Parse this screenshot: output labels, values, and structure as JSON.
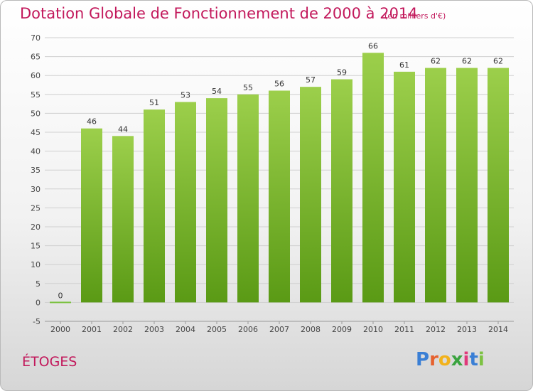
{
  "header": {
    "title": "Dotation Globale de Fonctionnement de 2000 à 2014",
    "subtitle": "(en milliers d'€)"
  },
  "footer": {
    "commune": "ÉTOGES",
    "logo_letters": [
      "P",
      "r",
      "o",
      "x",
      "i",
      "t",
      "i"
    ],
    "logo_colors": [
      "#3a7fd5",
      "#e6612e",
      "#f2b21b",
      "#3aa33f",
      "#e0397a",
      "#3a7fd5",
      "#7cc242"
    ]
  },
  "chart_data": {
    "type": "bar",
    "title": "Dotation Globale de Fonctionnement de 2000 à 2014",
    "subtitle": "(en milliers d'€)",
    "categories": [
      "2000",
      "2001",
      "2002",
      "2003",
      "2004",
      "2005",
      "2006",
      "2007",
      "2008",
      "2009",
      "2010",
      "2011",
      "2012",
      "2013",
      "2014"
    ],
    "values": [
      0,
      46,
      44,
      51,
      53,
      54,
      55,
      56,
      57,
      59,
      66,
      61,
      62,
      62,
      62
    ],
    "data_labels": [
      "0",
      "46",
      "44",
      "51",
      "53",
      "54",
      "55",
      "56",
      "57",
      "59",
      "66",
      "61",
      "62",
      "62",
      "62"
    ],
    "ylim": [
      -5,
      70
    ],
    "yticks": [
      -5,
      0,
      5,
      10,
      15,
      20,
      25,
      30,
      35,
      40,
      45,
      50,
      55,
      60,
      65,
      70
    ],
    "grid": "horizontal",
    "colors": {
      "bar_top": "#9ccf4b",
      "bar_bottom": "#5a9a15",
      "grid": "#d0d0d0",
      "accent": "#c2185b"
    }
  }
}
